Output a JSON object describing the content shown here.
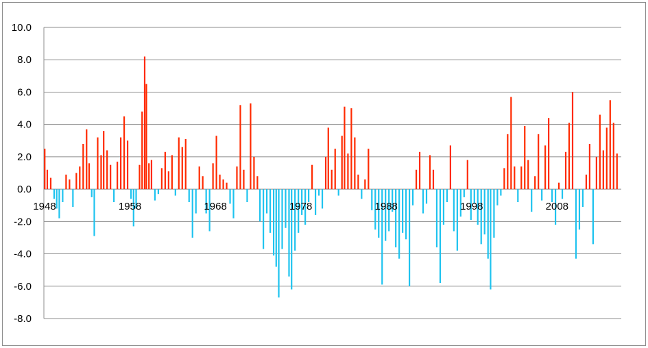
{
  "chart_data": {
    "type": "bar",
    "ylim": [
      -8,
      10
    ],
    "y_ticks": [
      "10.0",
      "8.0",
      "6.0",
      "4.0",
      "2.0",
      "0.0",
      "-2.0",
      "-4.0",
      "-6.0",
      "-8.0"
    ],
    "x_tick_labels": [
      "1948",
      "1958",
      "1968",
      "1978",
      "1988",
      "1998",
      "2008"
    ],
    "x_range": [
      1948,
      2015.6
    ],
    "grid": true,
    "legend": "none",
    "colors": {
      "positive": "#ff2a00",
      "negative": "#1ec3ef"
    },
    "series": [
      {
        "values": [
          {
            "x": 1948.1,
            "y": 2.5
          },
          {
            "x": 1948.4,
            "y": 1.2
          },
          {
            "x": 1948.8,
            "y": 0.7
          },
          {
            "x": 1949.2,
            "y": -0.6
          },
          {
            "x": 1949.5,
            "y": -1.2
          },
          {
            "x": 1949.8,
            "y": -1.8
          },
          {
            "x": 1950.2,
            "y": -0.8
          },
          {
            "x": 1950.6,
            "y": 0.9
          },
          {
            "x": 1951.0,
            "y": 0.6
          },
          {
            "x": 1951.4,
            "y": -1.1
          },
          {
            "x": 1951.8,
            "y": 1.0
          },
          {
            "x": 1952.2,
            "y": 1.4
          },
          {
            "x": 1952.6,
            "y": 2.8
          },
          {
            "x": 1953.0,
            "y": 3.7
          },
          {
            "x": 1953.3,
            "y": 1.6
          },
          {
            "x": 1953.6,
            "y": -0.5
          },
          {
            "x": 1953.9,
            "y": -2.9
          },
          {
            "x": 1954.3,
            "y": 3.2
          },
          {
            "x": 1954.7,
            "y": 2.1
          },
          {
            "x": 1955.0,
            "y": 3.6
          },
          {
            "x": 1955.4,
            "y": 2.4
          },
          {
            "x": 1955.8,
            "y": 1.5
          },
          {
            "x": 1956.2,
            "y": -0.8
          },
          {
            "x": 1956.6,
            "y": 1.7
          },
          {
            "x": 1957.0,
            "y": 3.2
          },
          {
            "x": 1957.4,
            "y": 4.5
          },
          {
            "x": 1957.8,
            "y": 3.0
          },
          {
            "x": 1958.2,
            "y": -0.6
          },
          {
            "x": 1958.5,
            "y": -2.3
          },
          {
            "x": 1958.8,
            "y": -1.2
          },
          {
            "x": 1959.2,
            "y": 1.5
          },
          {
            "x": 1959.5,
            "y": 4.8
          },
          {
            "x": 1959.8,
            "y": 8.2
          },
          {
            "x": 1960.0,
            "y": 6.5
          },
          {
            "x": 1960.3,
            "y": 1.6
          },
          {
            "x": 1960.6,
            "y": 1.8
          },
          {
            "x": 1961.0,
            "y": -0.7
          },
          {
            "x": 1961.4,
            "y": -0.3
          },
          {
            "x": 1961.8,
            "y": 1.3
          },
          {
            "x": 1962.2,
            "y": 2.3
          },
          {
            "x": 1962.6,
            "y": 1.1
          },
          {
            "x": 1963.0,
            "y": 2.1
          },
          {
            "x": 1963.4,
            "y": -0.4
          },
          {
            "x": 1963.8,
            "y": 3.2
          },
          {
            "x": 1964.2,
            "y": 2.6
          },
          {
            "x": 1964.6,
            "y": 3.1
          },
          {
            "x": 1965.0,
            "y": -0.8
          },
          {
            "x": 1965.4,
            "y": -3.0
          },
          {
            "x": 1965.8,
            "y": -1.5
          },
          {
            "x": 1966.2,
            "y": 1.4
          },
          {
            "x": 1966.6,
            "y": 0.8
          },
          {
            "x": 1967.0,
            "y": -1.5
          },
          {
            "x": 1967.4,
            "y": -2.6
          },
          {
            "x": 1967.8,
            "y": 1.6
          },
          {
            "x": 1968.2,
            "y": 3.3
          },
          {
            "x": 1968.6,
            "y": 0.9
          },
          {
            "x": 1969.0,
            "y": 0.6
          },
          {
            "x": 1969.4,
            "y": 0.4
          },
          {
            "x": 1969.8,
            "y": -0.9
          },
          {
            "x": 1970.2,
            "y": -1.8
          },
          {
            "x": 1970.6,
            "y": 1.4
          },
          {
            "x": 1971.0,
            "y": 5.2
          },
          {
            "x": 1971.4,
            "y": 1.2
          },
          {
            "x": 1971.8,
            "y": -0.8
          },
          {
            "x": 1972.2,
            "y": 5.3
          },
          {
            "x": 1972.6,
            "y": 2.0
          },
          {
            "x": 1973.0,
            "y": 0.8
          },
          {
            "x": 1973.3,
            "y": -2.0
          },
          {
            "x": 1973.7,
            "y": -3.7
          },
          {
            "x": 1974.1,
            "y": -1.5
          },
          {
            "x": 1974.5,
            "y": -2.7
          },
          {
            "x": 1974.9,
            "y": -4.1
          },
          {
            "x": 1975.2,
            "y": -4.8
          },
          {
            "x": 1975.5,
            "y": -6.7
          },
          {
            "x": 1975.9,
            "y": -3.7
          },
          {
            "x": 1976.3,
            "y": -2.4
          },
          {
            "x": 1976.7,
            "y": -5.4
          },
          {
            "x": 1977.0,
            "y": -6.2
          },
          {
            "x": 1977.4,
            "y": -3.8
          },
          {
            "x": 1977.8,
            "y": -2.7
          },
          {
            "x": 1978.2,
            "y": -1.6
          },
          {
            "x": 1978.6,
            "y": -2.2
          },
          {
            "x": 1979.0,
            "y": -0.8
          },
          {
            "x": 1979.4,
            "y": 1.5
          },
          {
            "x": 1979.8,
            "y": -1.6
          },
          {
            "x": 1980.2,
            "y": -0.4
          },
          {
            "x": 1980.6,
            "y": -1.2
          },
          {
            "x": 1981.0,
            "y": 2.0
          },
          {
            "x": 1981.3,
            "y": 3.8
          },
          {
            "x": 1981.7,
            "y": 1.2
          },
          {
            "x": 1982.1,
            "y": 2.5
          },
          {
            "x": 1982.5,
            "y": -0.4
          },
          {
            "x": 1982.9,
            "y": 3.3
          },
          {
            "x": 1983.2,
            "y": 5.1
          },
          {
            "x": 1983.6,
            "y": 2.2
          },
          {
            "x": 1984.0,
            "y": 5.0
          },
          {
            "x": 1984.4,
            "y": 3.2
          },
          {
            "x": 1984.8,
            "y": 0.9
          },
          {
            "x": 1985.2,
            "y": -0.6
          },
          {
            "x": 1985.6,
            "y": 0.6
          },
          {
            "x": 1986.0,
            "y": 2.5
          },
          {
            "x": 1986.4,
            "y": -1.3
          },
          {
            "x": 1986.8,
            "y": -2.5
          },
          {
            "x": 1987.2,
            "y": -3.0
          },
          {
            "x": 1987.6,
            "y": -5.9
          },
          {
            "x": 1988.0,
            "y": -3.2
          },
          {
            "x": 1988.4,
            "y": -2.6
          },
          {
            "x": 1988.8,
            "y": -1.4
          },
          {
            "x": 1989.2,
            "y": -3.6
          },
          {
            "x": 1989.6,
            "y": -4.3
          },
          {
            "x": 1990.0,
            "y": -2.7
          },
          {
            "x": 1990.4,
            "y": -3.1
          },
          {
            "x": 1990.8,
            "y": -6.0
          },
          {
            "x": 1991.2,
            "y": -1.0
          },
          {
            "x": 1991.6,
            "y": 1.2
          },
          {
            "x": 1992.0,
            "y": 2.3
          },
          {
            "x": 1992.4,
            "y": -1.5
          },
          {
            "x": 1992.8,
            "y": -0.9
          },
          {
            "x": 1993.2,
            "y": 2.1
          },
          {
            "x": 1993.6,
            "y": 1.2
          },
          {
            "x": 1994.0,
            "y": -3.6
          },
          {
            "x": 1994.4,
            "y": -5.8
          },
          {
            "x": 1994.8,
            "y": -2.2
          },
          {
            "x": 1995.2,
            "y": -0.8
          },
          {
            "x": 1995.6,
            "y": 2.7
          },
          {
            "x": 1996.0,
            "y": -2.6
          },
          {
            "x": 1996.4,
            "y": -3.8
          },
          {
            "x": 1996.8,
            "y": -1.7
          },
          {
            "x": 1997.2,
            "y": -0.5
          },
          {
            "x": 1997.6,
            "y": 1.8
          },
          {
            "x": 1998.0,
            "y": -1.9
          },
          {
            "x": 1998.4,
            "y": -0.9
          },
          {
            "x": 1998.8,
            "y": -2.2
          },
          {
            "x": 1999.2,
            "y": -3.4
          },
          {
            "x": 1999.6,
            "y": -2.8
          },
          {
            "x": 2000.0,
            "y": -4.3
          },
          {
            "x": 2000.3,
            "y": -6.2
          },
          {
            "x": 2000.7,
            "y": -3.0
          },
          {
            "x": 2001.1,
            "y": -1.0
          },
          {
            "x": 2001.5,
            "y": -0.4
          },
          {
            "x": 2001.9,
            "y": 1.3
          },
          {
            "x": 2002.3,
            "y": 3.4
          },
          {
            "x": 2002.7,
            "y": 5.7
          },
          {
            "x": 2003.1,
            "y": 1.4
          },
          {
            "x": 2003.5,
            "y": -0.8
          },
          {
            "x": 2003.9,
            "y": 1.4
          },
          {
            "x": 2004.3,
            "y": 3.9
          },
          {
            "x": 2004.7,
            "y": 1.8
          },
          {
            "x": 2005.1,
            "y": -1.4
          },
          {
            "x": 2005.5,
            "y": 0.8
          },
          {
            "x": 2005.9,
            "y": 3.4
          },
          {
            "x": 2006.3,
            "y": -0.7
          },
          {
            "x": 2006.7,
            "y": 2.7
          },
          {
            "x": 2007.1,
            "y": 4.4
          },
          {
            "x": 2007.5,
            "y": -0.8
          },
          {
            "x": 2007.9,
            "y": -2.2
          },
          {
            "x": 2008.3,
            "y": 0.4
          },
          {
            "x": 2008.7,
            "y": -0.6
          },
          {
            "x": 2009.1,
            "y": 2.3
          },
          {
            "x": 2009.5,
            "y": 4.1
          },
          {
            "x": 2009.9,
            "y": 6.0
          },
          {
            "x": 2010.3,
            "y": -4.3
          },
          {
            "x": 2010.7,
            "y": -2.5
          },
          {
            "x": 2011.1,
            "y": -1.1
          },
          {
            "x": 2011.5,
            "y": 0.9
          },
          {
            "x": 2011.9,
            "y": 2.8
          },
          {
            "x": 2012.3,
            "y": -3.4
          },
          {
            "x": 2012.7,
            "y": 2.0
          },
          {
            "x": 2013.1,
            "y": 4.6
          },
          {
            "x": 2013.5,
            "y": 2.4
          },
          {
            "x": 2013.9,
            "y": 3.8
          },
          {
            "x": 2014.3,
            "y": 5.5
          },
          {
            "x": 2014.7,
            "y": 4.1
          },
          {
            "x": 2015.1,
            "y": 2.2
          }
        ]
      }
    ]
  }
}
